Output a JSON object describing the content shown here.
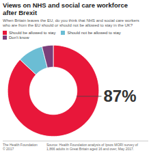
{
  "chart_data": {
    "type": "pie",
    "title": "Views on NHS and social care workforce\nafter Brexit",
    "subtitle": "When Britain leaves the EU, do you think that NHS and social care workers\nwho are from the EU should or should not be allowed to stay in the UK?",
    "categories": [
      "Should be allowed to stay",
      "Should not be allowed to stay",
      "Don't know"
    ],
    "values": [
      87,
      9,
      4
    ],
    "colors": [
      "#e8173a",
      "#6bbdd4",
      "#7b3f7a"
    ],
    "legend": "top",
    "annotation": "87%",
    "footer": "The Health Foundation\n© 2017",
    "source": "Source: Health Foundation analysis of Ipsos MORI survey of\n1,866 adults in Great Britain aged 16 and over, May 2017."
  }
}
